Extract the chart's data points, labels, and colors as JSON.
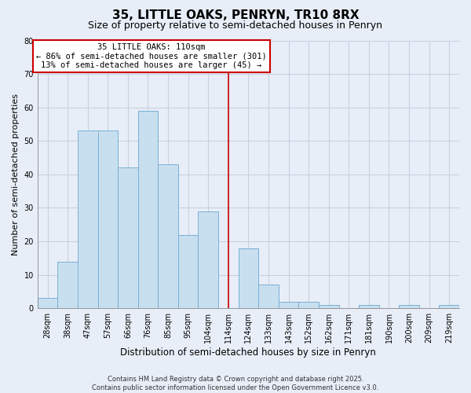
{
  "title": "35, LITTLE OAKS, PENRYN, TR10 8RX",
  "subtitle": "Size of property relative to semi-detached houses in Penryn",
  "xlabel": "Distribution of semi-detached houses by size in Penryn",
  "ylabel": "Number of semi-detached properties",
  "bar_labels": [
    "28sqm",
    "38sqm",
    "47sqm",
    "57sqm",
    "66sqm",
    "76sqm",
    "85sqm",
    "95sqm",
    "104sqm",
    "114sqm",
    "124sqm",
    "133sqm",
    "143sqm",
    "152sqm",
    "162sqm",
    "171sqm",
    "181sqm",
    "190sqm",
    "200sqm",
    "209sqm",
    "219sqm"
  ],
  "bar_values": [
    3,
    14,
    53,
    53,
    42,
    59,
    43,
    22,
    29,
    0,
    18,
    7,
    2,
    2,
    1,
    0,
    1,
    0,
    1,
    0,
    1
  ],
  "bar_color": "#c8dff0",
  "bar_edge_color": "#7aafd4",
  "ylim": [
    0,
    80
  ],
  "yticks": [
    0,
    10,
    20,
    30,
    40,
    50,
    60,
    70,
    80
  ],
  "vline_x": 9.0,
  "vline_color": "#cc0000",
  "annotation_title": "35 LITTLE OAKS: 110sqm",
  "annotation_line1": "← 86% of semi-detached houses are smaller (301)",
  "annotation_line2": "13% of semi-detached houses are larger (45) →",
  "footer_line1": "Contains HM Land Registry data © Crown copyright and database right 2025.",
  "footer_line2": "Contains public sector information licensed under the Open Government Licence v3.0.",
  "background_color": "#e8eef8",
  "grid_color": "#c8d0e0",
  "title_fontsize": 11,
  "subtitle_fontsize": 9
}
